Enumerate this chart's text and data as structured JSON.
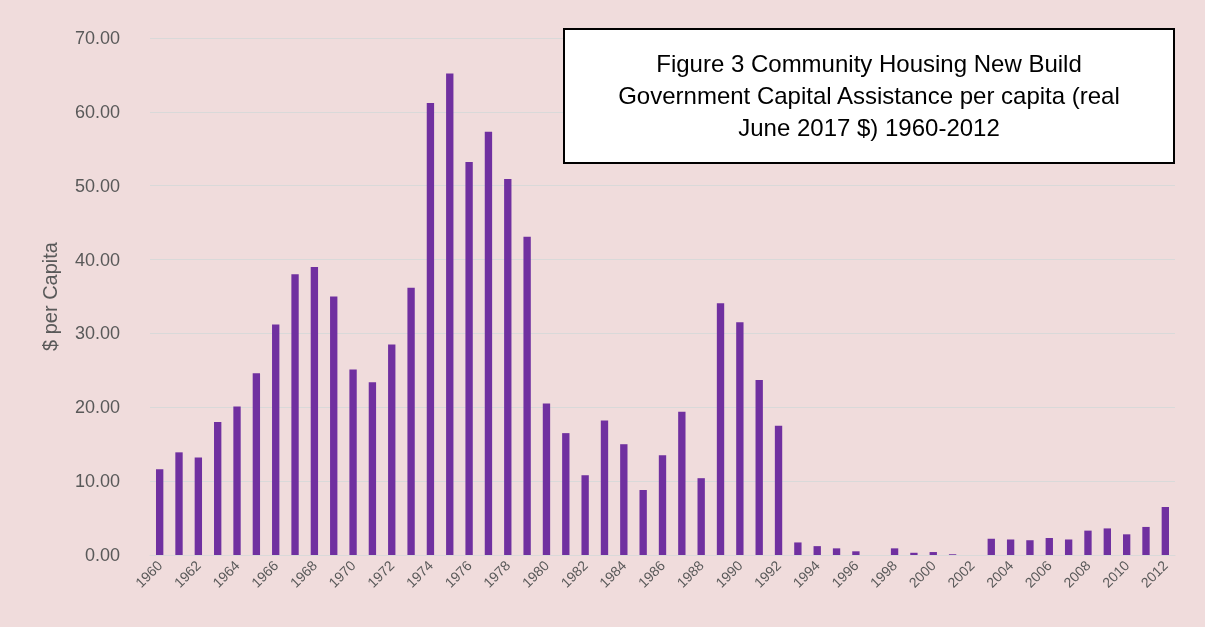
{
  "chart_data": {
    "type": "bar",
    "title": "Figure 3 Community Housing New Build Government Capital Assistance per capita (real June 2017 $) 1960-2012",
    "ylabel": "$ per Capita",
    "categories": [
      "1960",
      null,
      "1962",
      null,
      "1964",
      null,
      "1966",
      null,
      "1968",
      null,
      "1970",
      null,
      "1972",
      null,
      "1974",
      null,
      "1976",
      null,
      "1978",
      null,
      "1980",
      null,
      "1982",
      null,
      "1984",
      null,
      "1986",
      null,
      "1988",
      null,
      "1990",
      null,
      "1992",
      null,
      "1994",
      null,
      "1996",
      null,
      "1998",
      null,
      "2000",
      null,
      "2002",
      null,
      "2004",
      null,
      "2006",
      null,
      "2008",
      null,
      "2010",
      null,
      "2012"
    ],
    "values": [
      11.6,
      13.9,
      13.2,
      18.0,
      20.1,
      24.6,
      31.2,
      38.0,
      39.0,
      35.0,
      25.1,
      23.4,
      28.5,
      36.2,
      61.2,
      65.2,
      53.2,
      57.3,
      50.9,
      43.1,
      20.5,
      16.5,
      10.8,
      18.2,
      15.0,
      8.8,
      13.5,
      19.4,
      10.4,
      34.1,
      31.5,
      23.7,
      17.5,
      1.7,
      1.2,
      0.9,
      0.5,
      0,
      0.9,
      0.3,
      0.4,
      0.1,
      0,
      2.2,
      2.1,
      2.0,
      2.3,
      2.1,
      3.3,
      3.6,
      2.8,
      3.8,
      6.5
    ],
    "color": "#7030a0",
    "ylim": [
      0,
      70
    ],
    "yticks": [
      {
        "value": 0,
        "label": "0.00"
      },
      {
        "value": 10,
        "label": "10.00"
      },
      {
        "value": 20,
        "label": "20.00"
      },
      {
        "value": 30,
        "label": "30.00"
      },
      {
        "value": 40,
        "label": "40.00"
      },
      {
        "value": 50,
        "label": "50.00"
      },
      {
        "value": 60,
        "label": "60.00"
      },
      {
        "value": 70,
        "label": "70.00"
      }
    ],
    "grid": "y"
  }
}
